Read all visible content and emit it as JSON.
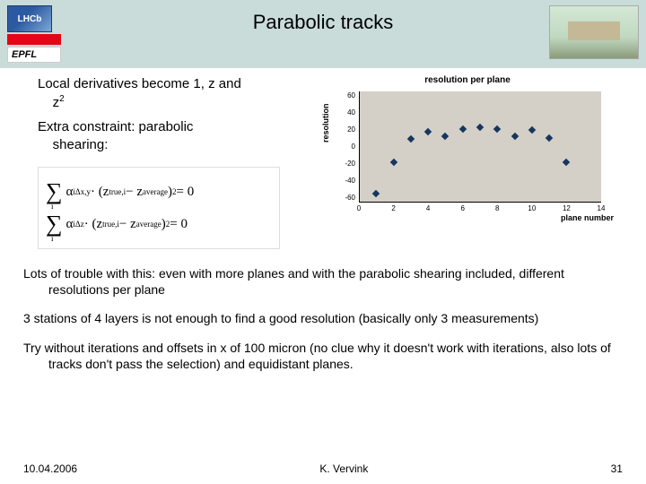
{
  "header": {
    "title": "Parabolic tracks",
    "logo_lhcb": "LHCb",
    "logo_epfl": "EPFL"
  },
  "left": {
    "line1a": "Local derivatives become 1, z and",
    "line1b": "z",
    "line1b_sup": "2",
    "line2a": "Extra constraint: parabolic",
    "line2b": "shearing:",
    "eq1_sup": "Δx,y",
    "eq1_mid": " · (z",
    "eq1_true": "true,i",
    "eq1_minus": " − z",
    "eq1_avg": "average",
    "eq1_end": ")",
    "eq1_pow": "2",
    "eq1_eq": " = 0",
    "eq2_sup": "Δz"
  },
  "chart": {
    "title": "resolution per plane",
    "ylabel": "resolution",
    "xlabel": "plane number",
    "background_color": "#d4d0c8",
    "marker_color": "#17365d",
    "yticks": [
      {
        "v": 60,
        "label": "60"
      },
      {
        "v": 40,
        "label": "40"
      },
      {
        "v": 20,
        "label": "20"
      },
      {
        "v": 0,
        "label": "0"
      },
      {
        "v": -20,
        "label": "-20"
      },
      {
        "v": -40,
        "label": "-40"
      },
      {
        "v": -60,
        "label": "-60"
      }
    ],
    "ylim_min": -65,
    "ylim_max": 65,
    "xticks": [
      0,
      2,
      4,
      6,
      8,
      10,
      12,
      14
    ],
    "xlim_min": 0,
    "xlim_max": 14,
    "points": [
      {
        "x": 1,
        "y": -55
      },
      {
        "x": 2,
        "y": -18
      },
      {
        "x": 3,
        "y": 9
      },
      {
        "x": 4,
        "y": 18
      },
      {
        "x": 5,
        "y": 13
      },
      {
        "x": 6,
        "y": 21
      },
      {
        "x": 7,
        "y": 23
      },
      {
        "x": 8,
        "y": 21
      },
      {
        "x": 9,
        "y": 13
      },
      {
        "x": 10,
        "y": 20
      },
      {
        "x": 11,
        "y": 10
      },
      {
        "x": 12,
        "y": -18
      }
    ]
  },
  "body": {
    "p1": "Lots of trouble with this:  even with more planes and with the parabolic shearing included, different resolutions per plane",
    "p2": "3 stations of 4 layers is not enough to find a good resolution (basically only 3 measurements)",
    "p3": "Try without iterations and offsets in x of 100 micron (no clue why it doesn't work with iterations, also lots of tracks don't pass the selection) and equidistant planes."
  },
  "footer": {
    "date": "10.04.2006",
    "author": "K. Vervink",
    "page": "31"
  }
}
